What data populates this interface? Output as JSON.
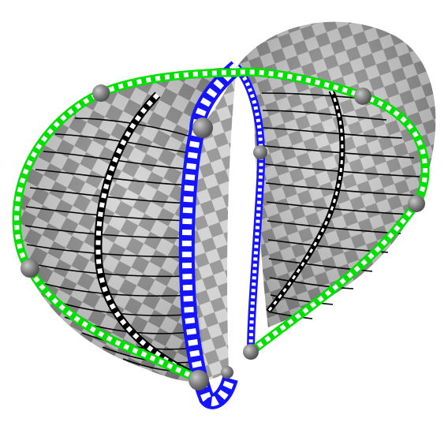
{
  "scene": {
    "background": "#ffffff",
    "checker_light": "#d2d2d2",
    "checker_dark": "#8a8a8a",
    "curve_green": "#00e000",
    "curve_blue": "#1414ff",
    "curve_black": "#000000",
    "node_color": "#7a7a7a",
    "node_count": 9,
    "node_icon": "sphere-node-icon"
  }
}
